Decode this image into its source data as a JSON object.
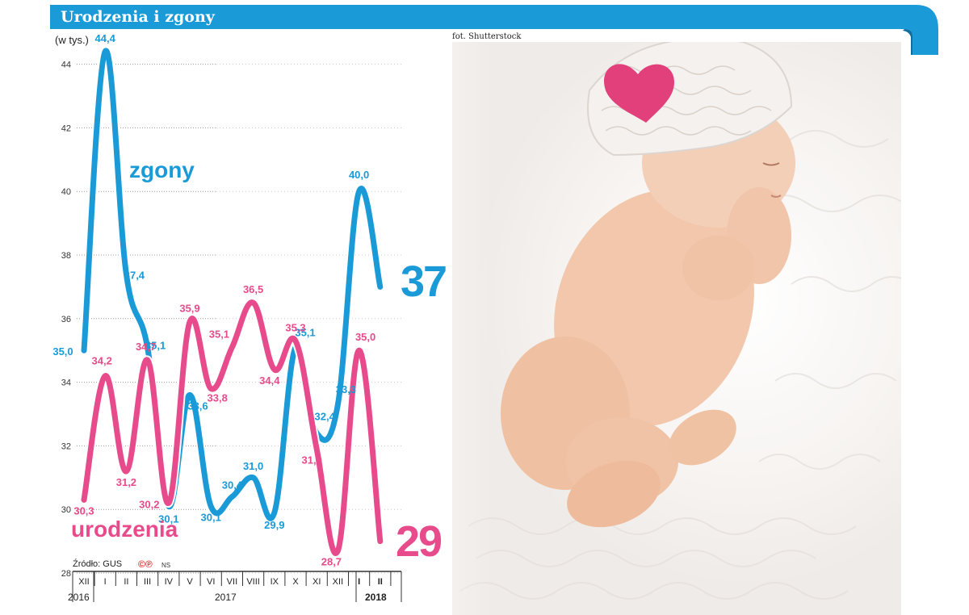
{
  "header": {
    "title": "Urodzenia i zgony",
    "photo_credit": "fot. Shutterstock"
  },
  "colors": {
    "accent": "#1a9ad7",
    "zgony": "#1a9ad7",
    "urodzenia": "#e74b8c"
  },
  "chart_data": {
    "type": "line",
    "title": "Urodzenia i zgony",
    "ylabel": "(w tys.)",
    "ylim": [
      28,
      45
    ],
    "yticks": [
      "28",
      "30",
      "32",
      "34",
      "36",
      "38",
      "40",
      "42",
      "44"
    ],
    "categories": [
      "XII",
      "I",
      "II",
      "III",
      "IV",
      "V",
      "VI",
      "VII",
      "VIII",
      "IX",
      "X",
      "XI",
      "XII",
      "I",
      "II"
    ],
    "year_labels": [
      "2016",
      "2017",
      "2018"
    ],
    "series": [
      {
        "name": "zgony",
        "values": [
          35.0,
          44.4,
          37.4,
          35.1,
          30.1,
          33.6,
          30.1,
          30.4,
          31.0,
          29.9,
          35.1,
          32.4,
          33.3,
          40.0,
          37.0
        ],
        "labels": [
          "35,0",
          "44,4",
          "37,4",
          "35,1",
          "30,1",
          "33,6",
          "30,1",
          "30,4",
          "31,0",
          "29,9",
          "35,1",
          "32,4",
          "33,3",
          "40,0",
          ""
        ]
      },
      {
        "name": "urodzenia",
        "values": [
          30.3,
          34.2,
          31.2,
          34.7,
          30.2,
          35.9,
          33.8,
          35.1,
          36.5,
          34.4,
          35.3,
          31.9,
          28.7,
          35.0,
          29.0
        ],
        "labels": [
          "30,3",
          "34,2",
          "31,2",
          "34,7",
          "30,2",
          "35,9",
          "33,8",
          "35,1",
          "36,5",
          "34,4",
          "35,3",
          "31,9",
          "28,7",
          "35,0",
          ""
        ]
      }
    ],
    "end_values": {
      "zgony": "37",
      "urodzenia": "29"
    },
    "source": "Źródło: GUS",
    "logo": "©℗",
    "author": "NS",
    "grid": true
  }
}
